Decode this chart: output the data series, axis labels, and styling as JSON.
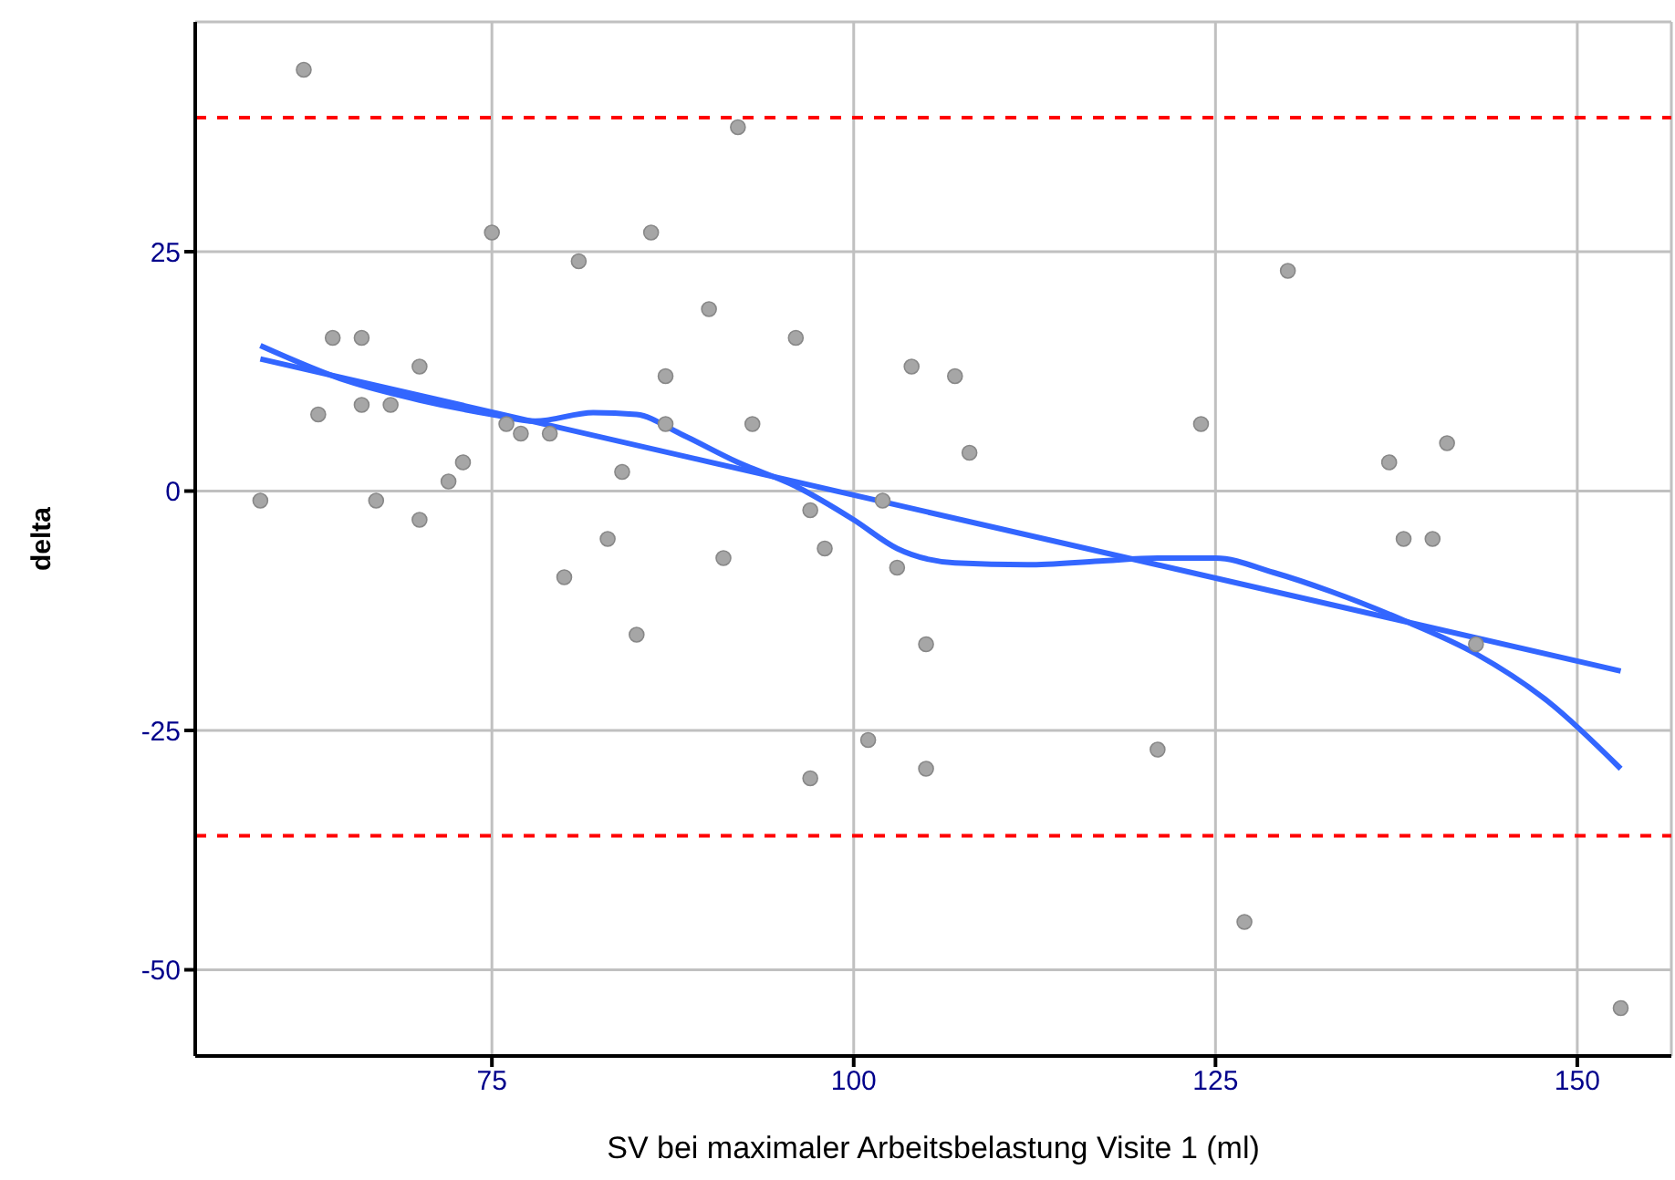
{
  "chart_data": {
    "type": "scatter",
    "xlabel": "SV bei maximaler Arbeitsbelastung Visite 1 (ml)",
    "ylabel": "delta",
    "xlim": [
      54.5,
      156.5
    ],
    "ylim": [
      -59,
      49
    ],
    "xticks": [
      75,
      100,
      125,
      150
    ],
    "yticks": [
      -50,
      -25,
      0,
      25
    ],
    "grid": true,
    "marker": "circle",
    "series": [
      {
        "color": "#a6a6a6",
        "x": [
          59,
          62,
          63,
          64,
          66,
          66,
          67,
          68,
          70,
          70,
          72,
          73,
          75,
          76,
          77,
          79,
          80,
          81,
          83,
          84,
          85,
          86,
          87,
          87,
          90,
          91,
          92,
          93,
          96,
          97,
          97,
          98,
          101,
          102,
          103,
          104,
          105,
          105,
          107,
          108,
          121,
          124,
          127,
          130,
          137,
          138,
          140,
          141,
          143,
          153
        ],
        "values": [
          -1,
          44,
          8,
          16,
          16,
          9,
          -1,
          9,
          13,
          -3,
          1,
          3,
          27,
          7,
          6,
          6,
          -9,
          24,
          -5,
          2,
          -15,
          27,
          7,
          12,
          19,
          -7,
          38,
          7,
          16,
          -2,
          -30,
          -6,
          -26,
          -1,
          -8,
          13,
          -16,
          -29,
          12,
          4,
          -27,
          7,
          -45,
          23,
          3,
          -5,
          -5,
          5,
          -16,
          -54
        ]
      },
      {
        "type": "line",
        "color": "#3366ff",
        "marker": "none",
        "x": [
          59,
          153
        ],
        "values": [
          13.8,
          -18.8
        ]
      },
      {
        "type": "line",
        "color": "#3366ff",
        "marker": "none",
        "x": [
          59,
          65,
          70,
          75,
          78,
          82,
          85,
          88,
          92,
          96,
          100,
          103,
          107,
          112,
          117,
          121,
          125,
          129,
          133,
          138,
          143,
          148,
          153
        ],
        "values": [
          15.2,
          11.5,
          9.5,
          8,
          7.3,
          8.2,
          8,
          6,
          3,
          0.5,
          -3,
          -6,
          -7.5,
          -7.7,
          -7.3,
          -7,
          -7,
          -8.5,
          -10.5,
          -13.5,
          -17,
          -22,
          -29
        ]
      }
    ],
    "ref_lines": [
      {
        "axis": "y",
        "value": 39,
        "color": "#ff0000",
        "line_style": "dashed"
      },
      {
        "axis": "y",
        "value": -36,
        "color": "#ff0000",
        "line_style": "dashed"
      }
    ]
  }
}
